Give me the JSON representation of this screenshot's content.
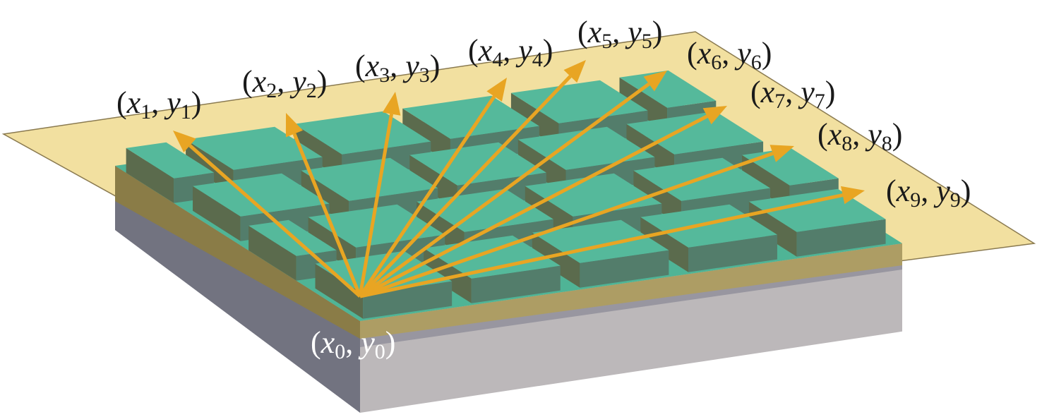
{
  "colors": {
    "plane": "#f2e0a0",
    "plane_edge": "#8a7a50",
    "block_top": "#55b99b",
    "block_left": "#5b6b4d",
    "block_right": "#537d6b",
    "base_top": "#4fb496",
    "layer_left": "#8a7c47",
    "layer_right": "#ad9d64",
    "substrate_left": "#727380",
    "substrate_right": "#bcb8ba",
    "substrate_strip": "#9896a0",
    "arrow": "#e8a523"
  },
  "origin_label": {
    "x": "x",
    "xi": "0",
    "y": "y",
    "yi": "0"
  },
  "labels": [
    {
      "x": "x",
      "xi": "1",
      "y": "y",
      "yi": "1"
    },
    {
      "x": "x",
      "xi": "2",
      "y": "y",
      "yi": "2"
    },
    {
      "x": "x",
      "xi": "3",
      "y": "y",
      "yi": "3"
    },
    {
      "x": "x",
      "xi": "4",
      "y": "y",
      "yi": "4"
    },
    {
      "x": "x",
      "xi": "5",
      "y": "y",
      "yi": "5"
    },
    {
      "x": "x",
      "xi": "6",
      "y": "y",
      "yi": "6"
    },
    {
      "x": "x",
      "xi": "7",
      "y": "y",
      "yi": "7"
    },
    {
      "x": "x",
      "xi": "8",
      "y": "y",
      "yi": "8"
    },
    {
      "x": "x",
      "xi": "9",
      "y": "y",
      "yi": "9"
    }
  ],
  "punct": {
    "open": "(",
    "comma": ", ",
    "close": ")"
  }
}
